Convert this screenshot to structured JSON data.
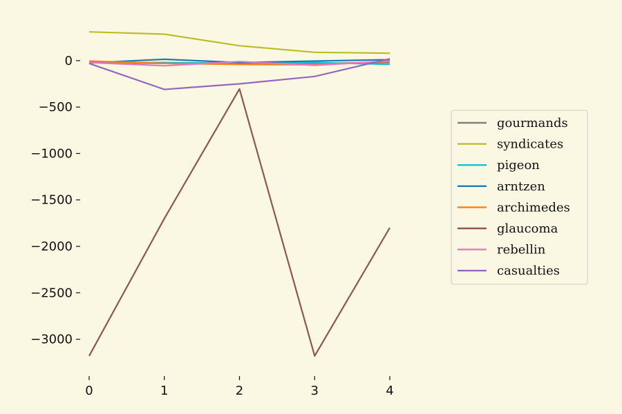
{
  "chart_data": {
    "type": "line",
    "title": "",
    "xlabel": "",
    "ylabel": "",
    "x": [
      0,
      1,
      2,
      3,
      4
    ],
    "x_ticks": [
      0,
      1,
      2,
      3,
      4
    ],
    "y_ticks": [
      0,
      -500,
      -1000,
      -1500,
      -2000,
      -2500,
      -3000
    ],
    "y_tick_labels": [
      "0",
      "−500",
      "−1000",
      "−1500",
      "−2000",
      "−2500",
      "−3000"
    ],
    "ylim": [
      -3300,
      430
    ],
    "xlim": [
      0,
      4
    ],
    "grid": false,
    "legend_position": "center-right",
    "series": [
      {
        "name": "gourmands",
        "color": "#7f7f7f",
        "values": [
          -20,
          -30,
          -20,
          -30,
          -20
        ]
      },
      {
        "name": "syndicates",
        "color": "#bcbd22",
        "values": [
          310,
          285,
          160,
          90,
          80
        ]
      },
      {
        "name": "pigeon",
        "color": "#17becf",
        "values": [
          -25,
          -20,
          -30,
          -20,
          -40
        ]
      },
      {
        "name": "arntzen",
        "color": "#1f77b4",
        "values": [
          -25,
          15,
          -20,
          -5,
          10
        ]
      },
      {
        "name": "archimedes",
        "color": "#ff7f0e",
        "values": [
          -5,
          -30,
          -40,
          -45,
          -10
        ]
      },
      {
        "name": "glaucoma",
        "color": "#8c564b",
        "values": [
          -3180,
          -1700,
          -305,
          -3180,
          -1800
        ]
      },
      {
        "name": "rebellin",
        "color": "#e377c2",
        "values": [
          -20,
          -55,
          -10,
          -50,
          -5
        ]
      },
      {
        "name": "casualties",
        "color": "#9467bd",
        "values": [
          -30,
          -310,
          -250,
          -170,
          20
        ]
      }
    ]
  }
}
